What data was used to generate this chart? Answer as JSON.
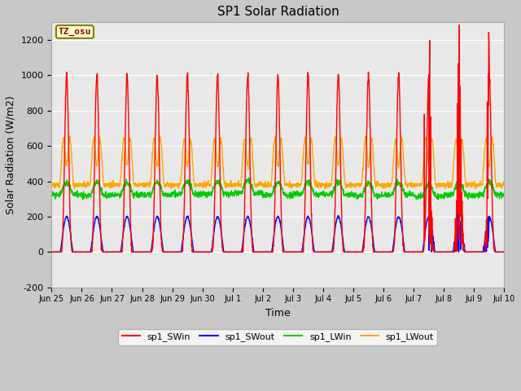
{
  "title": "SP1 Solar Radiation",
  "xlabel": "Time",
  "ylabel": "Solar Radiation (W/m2)",
  "ylim": [
    -200,
    1300
  ],
  "yticks": [
    -200,
    0,
    200,
    400,
    600,
    800,
    1000,
    1200
  ],
  "legend_labels": [
    "sp1_SWin",
    "sp1_SWout",
    "sp1_LWin",
    "sp1_LWout"
  ],
  "legend_colors": [
    "red",
    "blue",
    "#00cc00",
    "orange"
  ],
  "tz_label": "TZ_osu",
  "fig_bg": "#c8c8c8",
  "ax_bg": "#e8e8e8",
  "grid_color": "white",
  "day_labels": [
    "Jun 25",
    "Jun 26",
    "Jun 27",
    "Jun 28",
    "Jun 29",
    "Jun 30",
    "Jul 1",
    "Jul 2",
    "Jul 3",
    "Jul 4",
    "Jul 5",
    "Jul 6",
    "Jul 7",
    "Jul 8",
    "Jul 9",
    "Jul 10"
  ],
  "sw_in_peak": 1000,
  "sw_out_peak": 200,
  "lw_in_base": 325,
  "lw_in_range": 70,
  "lw_out_base": 380,
  "lw_out_peak": 260,
  "n_points_per_day": 144,
  "n_days": 15
}
